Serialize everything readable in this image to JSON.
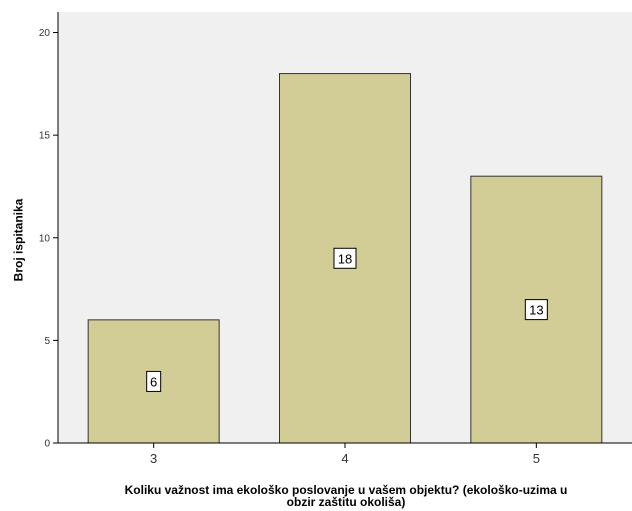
{
  "chart_data": {
    "type": "bar",
    "categories": [
      "3",
      "4",
      "5"
    ],
    "values": [
      6,
      18,
      13
    ],
    "data_labels": [
      "6",
      "18",
      "13"
    ],
    "xlabel_line1": "Koliku važnost ima ekološko poslovanje u vašem objektu? (ekološko-uzima u",
    "xlabel_line2": "obzir zaštitu okoliša)",
    "ylabel": "Broj ispitanika",
    "ylim": [
      0,
      21
    ],
    "yticks": [
      0,
      5,
      10,
      15,
      20
    ],
    "ytick_labels": [
      "0",
      "5",
      "10",
      "15",
      "20"
    ],
    "grid": false,
    "colors": {
      "plot_bg": "#f0f0f0",
      "bar_fill": "#d2cc96",
      "bar_stroke": "#333333",
      "axis": "#000000"
    }
  }
}
